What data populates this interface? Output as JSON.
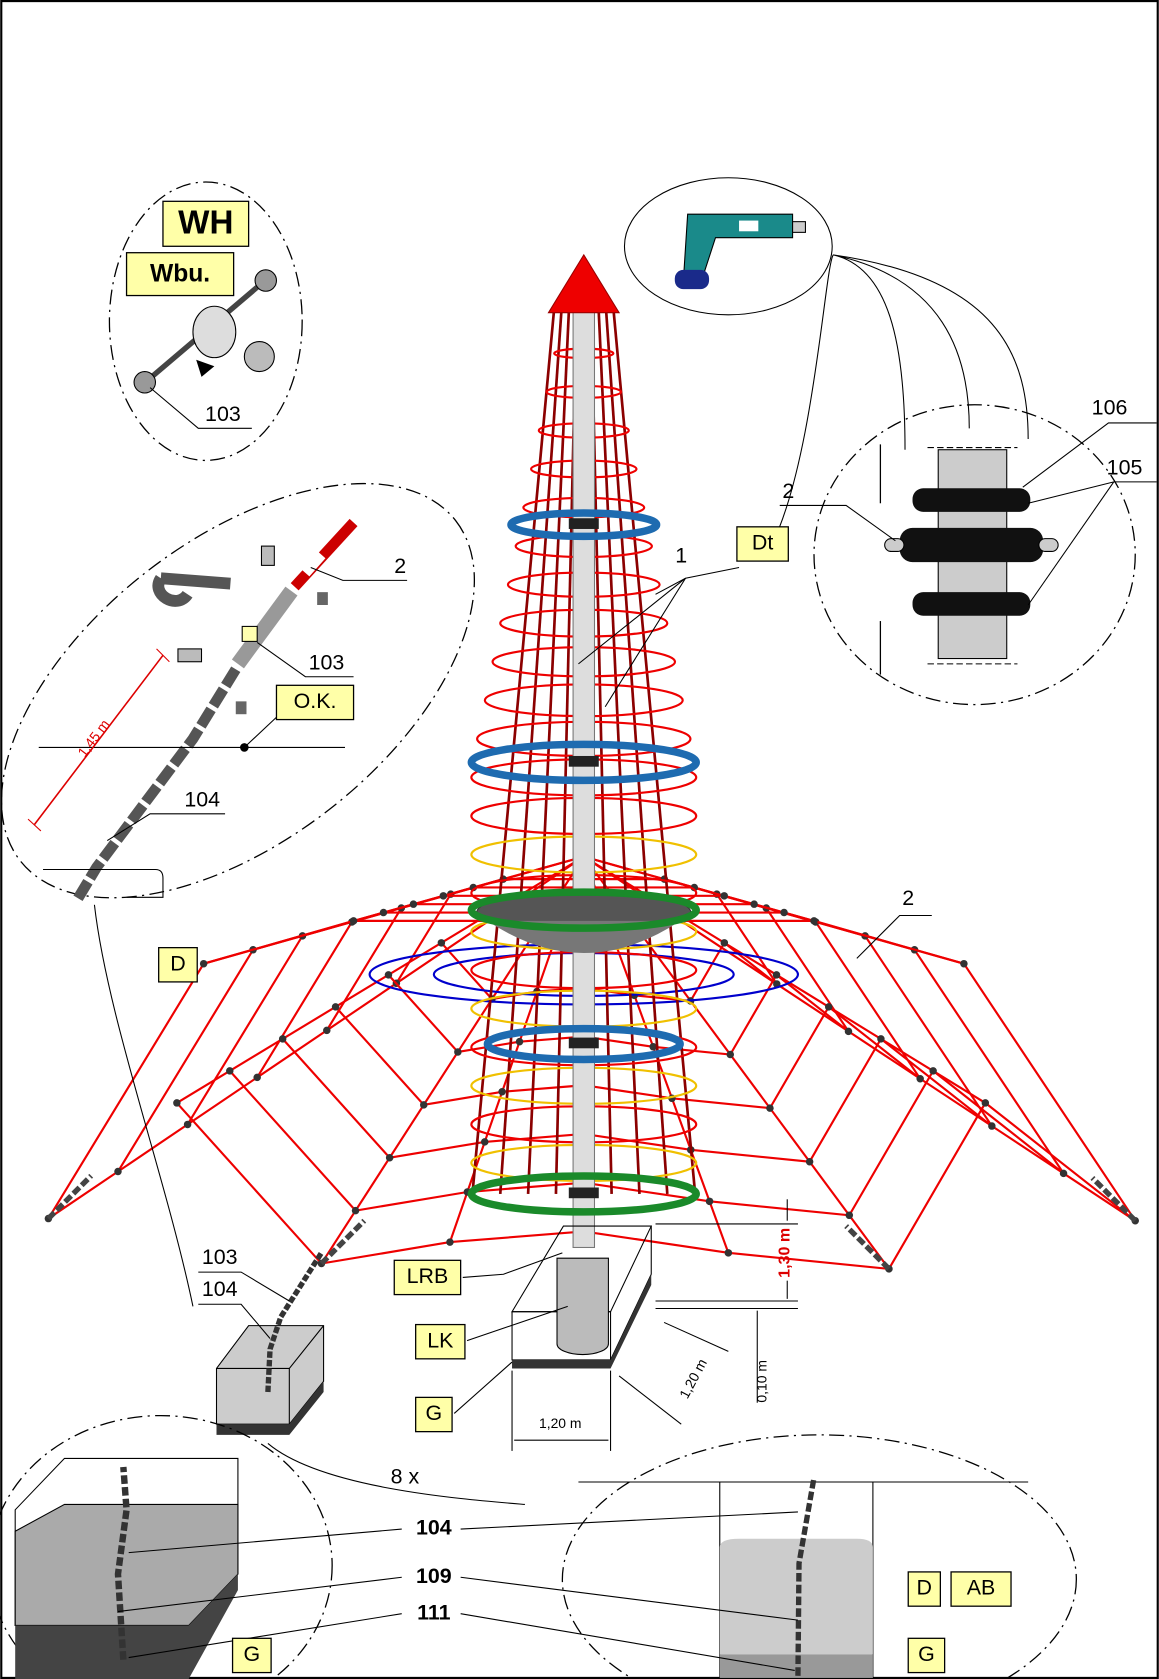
{
  "winch_detail": {
    "badges": [
      "WH",
      "Wbu."
    ],
    "part": "103"
  },
  "chain_detail": {
    "parts": [
      "2",
      "103",
      "104"
    ],
    "length": "1,45 m",
    "badges": [
      "O.K.",
      "D"
    ]
  },
  "clamp_detail": {
    "parts": [
      "106",
      "105",
      "2"
    ],
    "badge": "Dt"
  },
  "tower": {
    "parts": [
      "1",
      "2"
    ]
  },
  "foundation": {
    "height": "1,30 m",
    "badges": [
      "LRB",
      "LK",
      "G"
    ],
    "dims": [
      "1,20 m",
      "0,10 m",
      "1,20 m"
    ]
  },
  "anchor": {
    "parts": [
      "103",
      "104"
    ],
    "count": "8 x"
  },
  "anchor_detail": {
    "parts": [
      "104",
      "109",
      "111"
    ],
    "badges_left": [
      "G"
    ],
    "badges_right": [
      "D",
      "AB",
      "G"
    ]
  }
}
